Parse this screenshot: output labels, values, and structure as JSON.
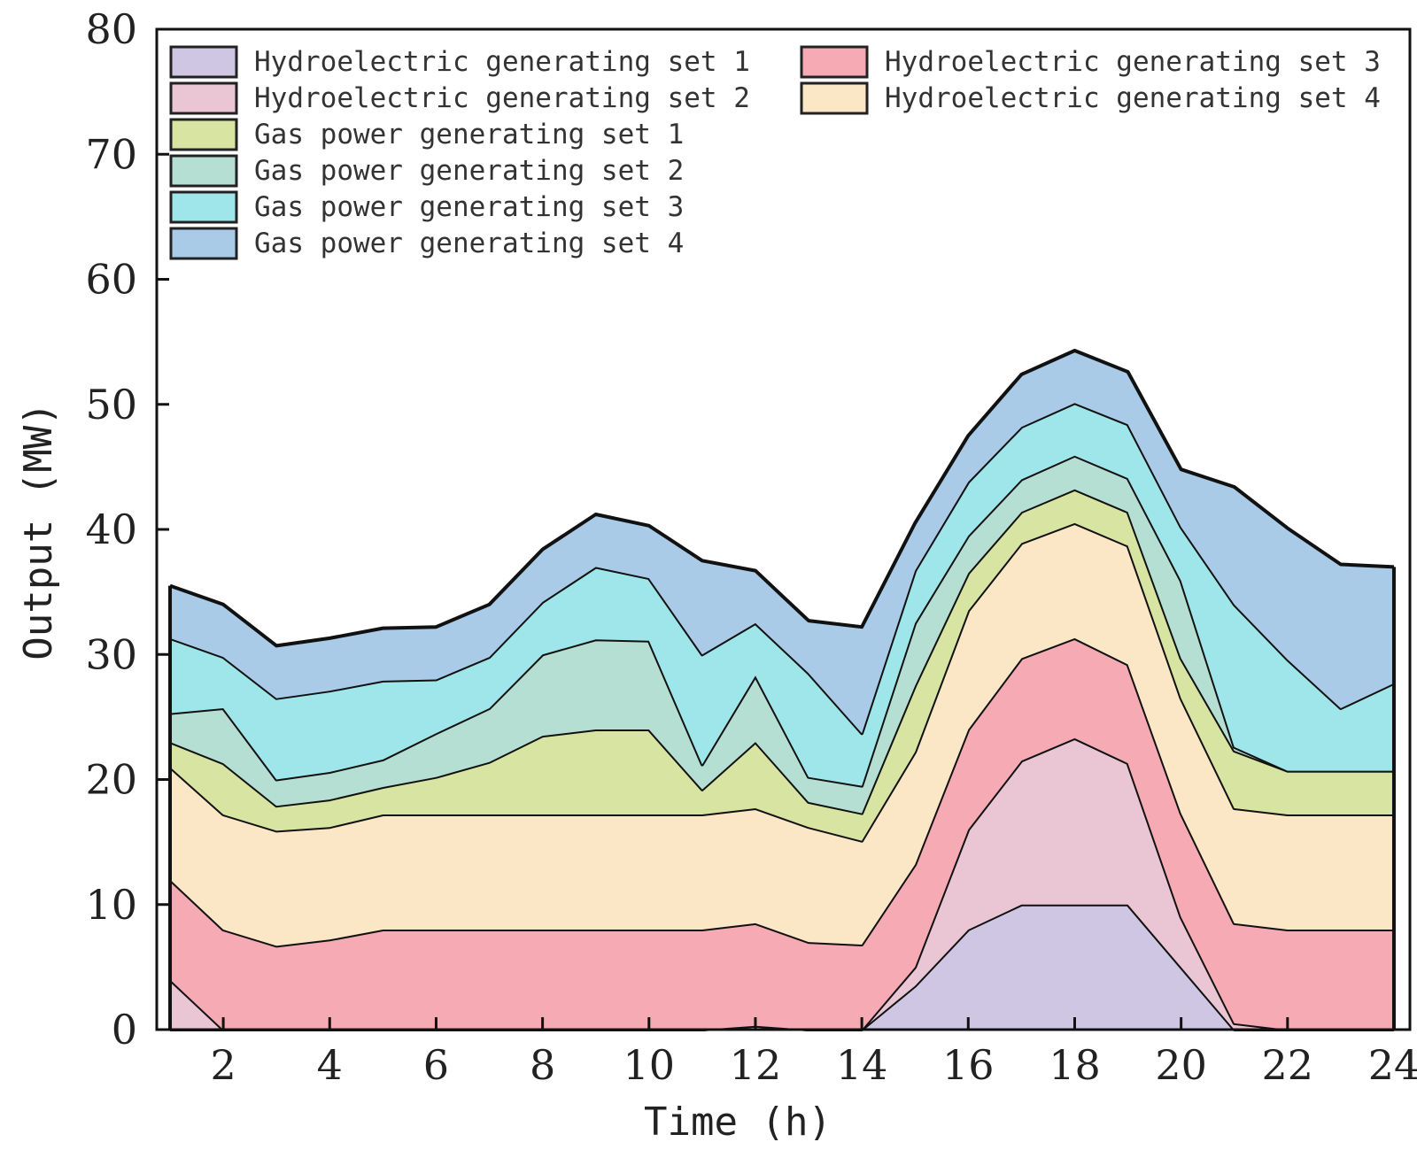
{
  "chart_data": {
    "type": "area",
    "stacked": true,
    "title": "",
    "xlabel": "Time (h)",
    "ylabel": "Output (MW)",
    "xlim": [
      0.75,
      24.3
    ],
    "ylim": [
      0,
      80
    ],
    "xticks": [
      2,
      4,
      6,
      8,
      10,
      12,
      14,
      16,
      18,
      20,
      22,
      24
    ],
    "yticks": [
      0,
      10,
      20,
      30,
      40,
      50,
      60,
      70,
      80
    ],
    "grid": false,
    "legend_position": "top",
    "x": [
      1,
      2,
      3,
      4,
      5,
      6,
      7,
      8,
      9,
      10,
      11,
      12,
      13,
      14,
      15,
      16,
      17,
      18,
      19,
      20,
      21,
      22,
      23,
      24
    ],
    "series": [
      {
        "name": "Hydroelectric generating set 1",
        "color": "#cfc6e3",
        "values": [
          0,
          0,
          0,
          0,
          0,
          0,
          0,
          0,
          0,
          0,
          0,
          0.3,
          0,
          0,
          3.5,
          8,
          10,
          10,
          10,
          5,
          0,
          0,
          0,
          0
        ]
      },
      {
        "name": "Hydroelectric generating set 2",
        "color": "#eac6d4",
        "values": [
          4,
          0,
          0,
          0,
          0,
          0,
          0,
          0,
          0,
          0,
          0,
          0,
          0,
          0,
          1.5,
          8,
          11.5,
          13.3,
          11.3,
          4,
          0.5,
          0,
          0,
          0
        ]
      },
      {
        "name": "Hydroelectric generating set 3",
        "color": "#f5aab4",
        "values": [
          8,
          8,
          6.7,
          7.2,
          8,
          8,
          8,
          8,
          8,
          8,
          8,
          8.2,
          7,
          6.8,
          8.2,
          8,
          8.2,
          8,
          7.9,
          8.3,
          8,
          8,
          8,
          8
        ]
      },
      {
        "name": "Hydroelectric generating set 4",
        "color": "#fbe6c6",
        "values": [
          9,
          9.2,
          9.2,
          9,
          9.2,
          9.2,
          9.2,
          9.2,
          9.2,
          9.2,
          9.2,
          9.2,
          9.2,
          8.3,
          9,
          9.5,
          9.2,
          9.2,
          9.5,
          9.2,
          9.2,
          9.2,
          9.2,
          9.2
        ]
      },
      {
        "name": "Gas power generating set 1",
        "color": "#d8e4a2",
        "values": [
          2,
          4.1,
          2,
          2.2,
          2.2,
          3,
          4.2,
          6.3,
          6.8,
          6.8,
          2,
          5.3,
          2,
          2.2,
          5.3,
          3,
          2.5,
          2.7,
          2.7,
          3.2,
          4.6,
          3.5,
          3.5,
          3.5
        ]
      },
      {
        "name": "Gas power generating set 2",
        "color": "#b6dfd4",
        "values": [
          2.3,
          4.4,
          2.1,
          2.2,
          2.2,
          3.5,
          4.3,
          6.5,
          7.2,
          7.1,
          2,
          5.3,
          2,
          2.2,
          5,
          3,
          2.6,
          2.7,
          2.7,
          6.2,
          0.3,
          0,
          0,
          0
        ]
      },
      {
        "name": "Gas power generating set 3",
        "color": "#9fe6ea",
        "values": [
          6,
          4.1,
          6.5,
          6.5,
          6.3,
          4.3,
          4.1,
          4.2,
          5.8,
          5,
          8.8,
          4.2,
          8.3,
          4.2,
          4.2,
          4.3,
          4.2,
          4.2,
          4.3,
          4.3,
          11.4,
          8.9,
          5,
          7
        ]
      },
      {
        "name": "Gas power generating set 4",
        "color": "#a9cbe8",
        "values": [
          4.2,
          4.2,
          4.2,
          4.2,
          4.2,
          4.2,
          4.2,
          4.2,
          4.2,
          4.2,
          7.5,
          4.2,
          4.2,
          8.5,
          3.8,
          3.7,
          4.2,
          4.2,
          4.2,
          4.6,
          9.4,
          10.5,
          11.5,
          9.3
        ]
      }
    ],
    "legend_layout": [
      [
        0,
        2
      ],
      [
        1,
        3
      ],
      [
        4
      ],
      [
        5
      ],
      [
        6
      ],
      [
        7
      ]
    ]
  }
}
